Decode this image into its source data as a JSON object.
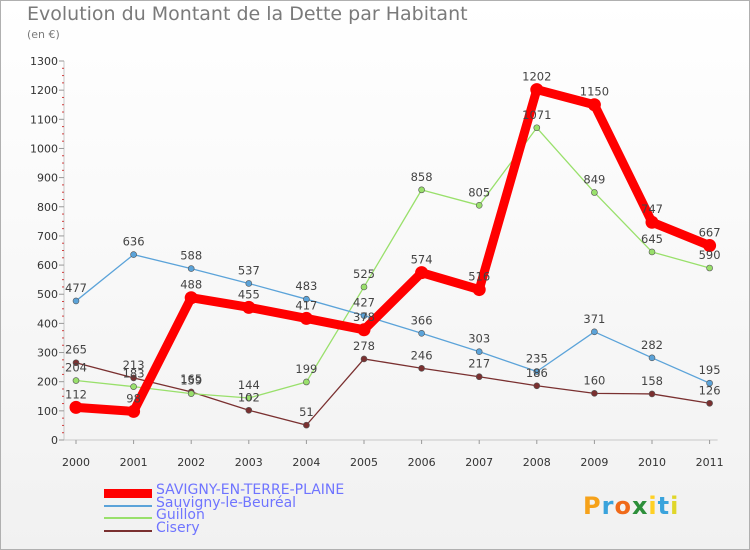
{
  "title": "Evolution du Montant de la Dette par Habitant",
  "subtitle": "(en €)",
  "brand": "Proxiti",
  "chart_data": {
    "type": "line",
    "x": [
      "2000",
      "2001",
      "2002",
      "2003",
      "2004",
      "2005",
      "2006",
      "2007",
      "2008",
      "2009",
      "2010",
      "2011"
    ],
    "ylim": [
      0,
      1300
    ],
    "yticks": [
      0,
      100,
      200,
      300,
      400,
      500,
      600,
      700,
      800,
      900,
      1000,
      1100,
      1200,
      1300
    ],
    "grid": false,
    "legend": "bottom",
    "series": [
      {
        "name": "SAVIGNY-EN-TERRE-PLAINE",
        "color": "#ff0000",
        "values": [
          112,
          98,
          488,
          455,
          417,
          378,
          574,
          516,
          1202,
          1150,
          747,
          667
        ]
      },
      {
        "name": "Sauvigny-le-Beuréal",
        "color": "#5ba3d9",
        "values": [
          477,
          636,
          588,
          537,
          483,
          427,
          366,
          303,
          235,
          371,
          282,
          195
        ]
      },
      {
        "name": "Guillon",
        "color": "#99e06b",
        "values": [
          204,
          183,
          159,
          144,
          199,
          525,
          858,
          805,
          1071,
          849,
          645,
          590
        ]
      },
      {
        "name": "Cisery",
        "color": "#7a3030",
        "values": [
          265,
          213,
          165,
          102,
          51,
          278,
          246,
          217,
          186,
          160,
          158,
          126
        ]
      }
    ]
  }
}
